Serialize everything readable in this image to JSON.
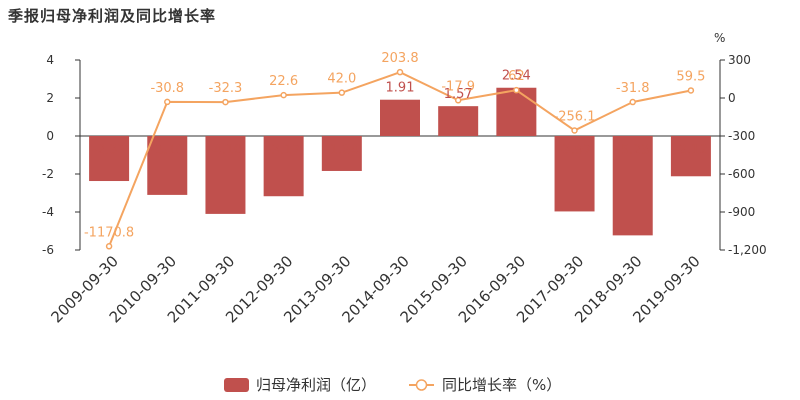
{
  "title": "季报归母净利润及同比增长率",
  "chart_data": {
    "type": "bar",
    "title": "季报归母净利润及同比增长率",
    "categories": [
      "2009-09-30",
      "2010-09-30",
      "2011-09-30",
      "2012-09-30",
      "2013-09-30",
      "2014-09-30",
      "2015-09-30",
      "2016-09-30",
      "2017-09-30",
      "2018-09-30",
      "2019-09-30"
    ],
    "series": [
      {
        "name": "归母净利润（亿）",
        "type": "bar",
        "axis": "left",
        "color": "#c0504d",
        "values": [
          -2.37,
          -3.1,
          -4.1,
          -3.17,
          -1.84,
          1.91,
          1.57,
          2.54,
          -3.97,
          -5.23,
          -2.12
        ],
        "labels": [
          "-2.37",
          "-3.10",
          "-4.10",
          "-3.17",
          "-1.84",
          "1.91",
          "1.57",
          "2.54",
          "-3.97",
          "-5.23",
          "-2.12"
        ]
      },
      {
        "name": "同比增长率（%）",
        "type": "line",
        "axis": "right",
        "color": "#f4a460",
        "values": [
          -1170.8,
          -30.8,
          -32.3,
          22.6,
          42.0,
          203.8,
          -17.9,
          62.0,
          -256.1,
          -31.8,
          59.5
        ],
        "labels": [
          "-1170.8",
          "-30.8",
          "-32.3",
          "22.6",
          "42.0",
          "203.8",
          "-17.9",
          "62",
          "-256.1",
          "-31.8",
          "59.5"
        ]
      }
    ],
    "y_left": {
      "ticks": [
        "4",
        "2",
        "0",
        "-2",
        "-4",
        "-6"
      ],
      "ylim": [
        -6,
        4
      ]
    },
    "y_right": {
      "unit": "%",
      "ticks": [
        "300",
        "0",
        "-300",
        "-600",
        "-900",
        "-1,200"
      ],
      "ylim": [
        -1200,
        300
      ]
    },
    "legend": {
      "position": "bottom",
      "items": [
        "归母净利润（亿）",
        "同比增长率（%）"
      ]
    },
    "grid": false
  }
}
